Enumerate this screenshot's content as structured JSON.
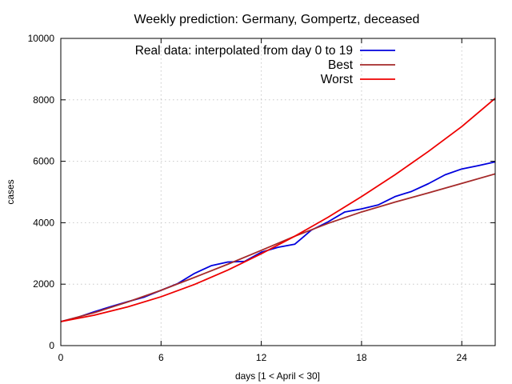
{
  "chart_data": {
    "type": "line",
    "title": "Weekly prediction: Germany, Gompertz, deceased",
    "xlabel": "days [1 < April < 30]",
    "ylabel": "cases",
    "xlim": [
      0,
      26
    ],
    "ylim": [
      0,
      10000
    ],
    "xticks": [
      0,
      6,
      12,
      18,
      24
    ],
    "yticks": [
      0,
      2000,
      4000,
      6000,
      8000,
      10000
    ],
    "grid": true,
    "legend_position": "top-left",
    "series": [
      {
        "name": "Real data: interpolated from day 0 to 19",
        "color": "#0000dd",
        "x": [
          0,
          1,
          2,
          3,
          4,
          5,
          6,
          7,
          8,
          9,
          10,
          11,
          12,
          13,
          14,
          15,
          16,
          17,
          18,
          19,
          20,
          21,
          22,
          23,
          24,
          25,
          26
        ],
        "y": [
          780,
          920,
          1100,
          1270,
          1430,
          1580,
          1800,
          2020,
          2350,
          2600,
          2720,
          2740,
          3040,
          3200,
          3300,
          3760,
          4030,
          4350,
          4450,
          4580,
          4850,
          5020,
          5270,
          5560,
          5750,
          5860,
          5980
        ]
      },
      {
        "name": "Best",
        "color": "#a52a2a",
        "x": [
          0,
          2,
          4,
          6,
          8,
          10,
          12,
          14,
          16,
          18,
          20,
          22,
          24,
          26
        ],
        "y": [
          780,
          1070,
          1420,
          1800,
          2220,
          2650,
          3100,
          3560,
          3980,
          4350,
          4670,
          4970,
          5280,
          5590
        ]
      },
      {
        "name": "Worst",
        "color": "#ee0000",
        "x": [
          0,
          2,
          4,
          6,
          8,
          10,
          12,
          14,
          16,
          18,
          20,
          22,
          24,
          26
        ],
        "y": [
          780,
          990,
          1260,
          1590,
          1990,
          2460,
          2990,
          3560,
          4180,
          4850,
          5560,
          6320,
          7130,
          8050
        ]
      }
    ]
  }
}
